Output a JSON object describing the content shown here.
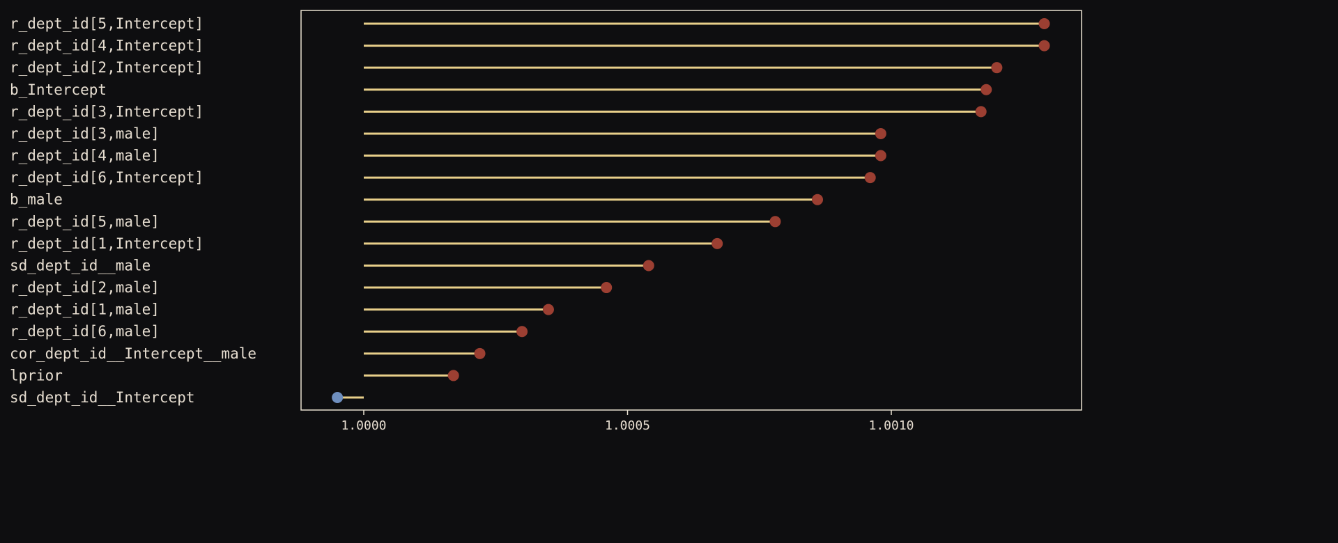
{
  "chart_data": {
    "type": "lollipop",
    "title": "",
    "xlabel": "",
    "ylabel": "",
    "baseline": 1.0,
    "xlim": [
      0.99988,
      1.00136
    ],
    "xticks": [
      1.0,
      1.0005,
      1.001
    ],
    "xtick_labels": [
      "1.0000",
      "1.0005",
      "1.0010"
    ],
    "grid": false,
    "categories": [
      "r_dept_id[5,Intercept]",
      "r_dept_id[4,Intercept]",
      "r_dept_id[2,Intercept]",
      "b_Intercept",
      "r_dept_id[3,Intercept]",
      "r_dept_id[3,male]",
      "r_dept_id[4,male]",
      "r_dept_id[6,Intercept]",
      "b_male",
      "r_dept_id[5,male]",
      "r_dept_id[1,Intercept]",
      "sd_dept_id__male",
      "r_dept_id[2,male]",
      "r_dept_id[1,male]",
      "r_dept_id[6,male]",
      "cor_dept_id__Intercept__male",
      "lprior",
      "sd_dept_id__Intercept"
    ],
    "values": [
      1.00129,
      1.00129,
      1.0012,
      1.00118,
      1.00117,
      1.00098,
      1.00098,
      1.00096,
      1.00086,
      1.00078,
      1.00067,
      1.00054,
      1.00046,
      1.00035,
      1.0003,
      1.00022,
      1.00017,
      0.99995
    ],
    "colors": {
      "background": "#0e0e10",
      "stem": "#e8cf8a",
      "point_above": "#9c3f32",
      "point_below": "#6f8fbf",
      "frame": "#e8e0d0",
      "text": "#e6ddd0"
    }
  }
}
